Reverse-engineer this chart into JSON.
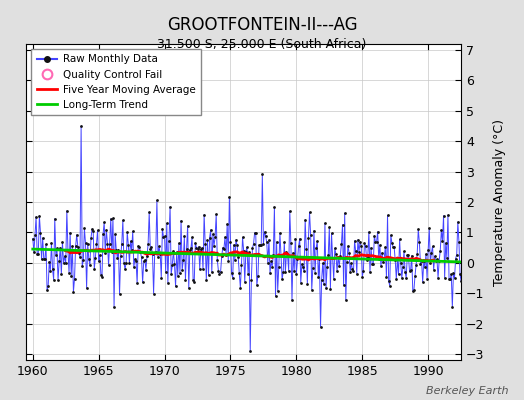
{
  "title": "GROOTFONTEIN-II---AG",
  "subtitle": "31.500 S, 25.000 E (South Africa)",
  "ylabel": "Temperature Anomaly (°C)",
  "watermark": "Berkeley Earth",
  "bg_color": "#e0e0e0",
  "plot_bg_color": "#ffffff",
  "xlim": [
    1959.5,
    1992.5
  ],
  "ylim": [
    -3.2,
    7.2
  ],
  "yticks": [
    -3,
    -2,
    -1,
    0,
    1,
    2,
    3,
    4,
    5,
    6,
    7
  ],
  "xticks": [
    1960,
    1965,
    1970,
    1975,
    1980,
    1985,
    1990
  ],
  "raw_color": "#4444ff",
  "dot_color": "#111111",
  "ma_color": "#ff0000",
  "trend_color": "#00cc00",
  "qc_color": "#ff69b4",
  "seed": 42,
  "n_points": 396,
  "start_year": 1960.0,
  "end_year": 1993.0,
  "trend_intercept": 0.45,
  "trend_slope": -0.013
}
